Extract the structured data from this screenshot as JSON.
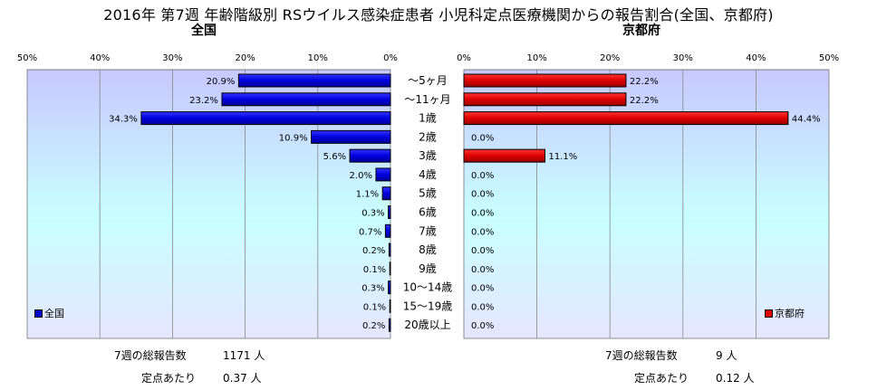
{
  "title": "2016年 第7週 年齢階級別 RSウイルス感染症患者 小児科定点医療機関からの報告割合(全国、京都府)",
  "colors": {
    "national_bar": "#0000CC",
    "kyoto_bar": "#DD0000",
    "plot_top": "#C8C8FF",
    "plot_mid": "#C8FFFF",
    "plot_bottom": "#E6E6FF",
    "grid": "#888888"
  },
  "national": {
    "panel_title": "全国",
    "legend": "全国",
    "stats": {
      "total_label": "7週の総報告数",
      "total_value": "1171 人",
      "per_label": "定点あたり",
      "per_value": "0.37 人"
    }
  },
  "kyoto": {
    "panel_title": "京都府",
    "legend": "京都府",
    "stats": {
      "total_label": "7週の総報告数",
      "total_value": "9 人",
      "per_label": "定点あたり",
      "per_value": "0.12 人"
    }
  },
  "chart_data": [
    {
      "type": "bar",
      "orientation": "horizontal",
      "direction": "right-to-left",
      "title": "全国",
      "categories": [
        "～5ヶ月",
        "～11ヶ月",
        "1歳",
        "2歳",
        "3歳",
        "4歳",
        "5歳",
        "6歳",
        "7歳",
        "8歳",
        "9歳",
        "10～14歳",
        "15～19歳",
        "20歳以上"
      ],
      "values": [
        20.9,
        23.2,
        34.3,
        10.9,
        5.6,
        2.0,
        1.1,
        0.3,
        0.7,
        0.2,
        0.1,
        0.3,
        0.1,
        0.2
      ],
      "data_labels": [
        "20.9%",
        "23.2%",
        "34.3%",
        "10.9%",
        "5.6%",
        "2.0%",
        "1.1%",
        "0.3%",
        "0.7%",
        "0.2%",
        "0.1%",
        "0.3%",
        "0.1%",
        "0.2%"
      ],
      "xlim": [
        0,
        50
      ],
      "xticks": [
        "50%",
        "40%",
        "30%",
        "20%",
        "10%",
        "0%"
      ],
      "grid": true,
      "legend": "bottom-left"
    },
    {
      "type": "bar",
      "orientation": "horizontal",
      "direction": "left-to-right",
      "title": "京都府",
      "categories": [
        "～5ヶ月",
        "～11ヶ月",
        "1歳",
        "2歳",
        "3歳",
        "4歳",
        "5歳",
        "6歳",
        "7歳",
        "8歳",
        "9歳",
        "10～14歳",
        "15～19歳",
        "20歳以上"
      ],
      "values": [
        22.2,
        22.2,
        44.4,
        0.0,
        11.1,
        0.0,
        0.0,
        0.0,
        0.0,
        0.0,
        0.0,
        0.0,
        0.0,
        0.0
      ],
      "data_labels": [
        "22.2%",
        "22.2%",
        "44.4%",
        "0.0%",
        "11.1%",
        "0.0%",
        "0.0%",
        "0.0%",
        "0.0%",
        "0.0%",
        "0.0%",
        "0.0%",
        "0.0%",
        "0.0%"
      ],
      "xlim": [
        0,
        50
      ],
      "xticks": [
        "0%",
        "10%",
        "20%",
        "30%",
        "40%",
        "50%"
      ],
      "grid": true,
      "legend": "bottom-right"
    }
  ]
}
